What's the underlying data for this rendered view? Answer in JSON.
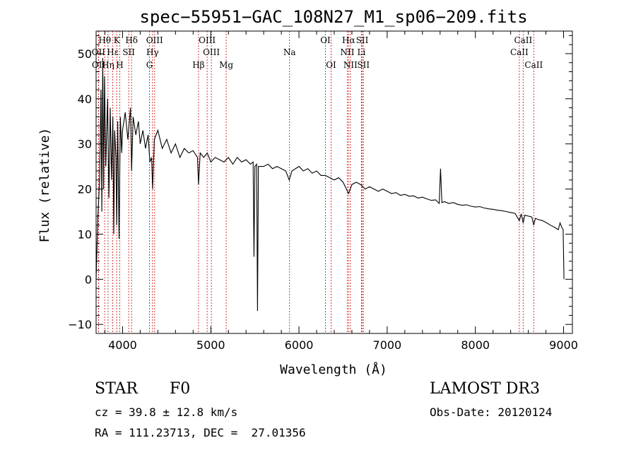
{
  "chart_data": {
    "type": "line",
    "title": "spec−55951−GAC_108N27_M1_sp06−209.fits",
    "xlabel": "Wavelength (Å)",
    "ylabel": "Flux (relative)",
    "xlim": [
      3700,
      9100
    ],
    "ylim": [
      -12,
      55
    ],
    "xticks": [
      4000,
      5000,
      6000,
      7000,
      8000,
      9000
    ],
    "yticks": [
      -10,
      0,
      10,
      20,
      30,
      40,
      50
    ],
    "tick_labels_x": [
      "4000",
      "5000",
      "6000",
      "7000",
      "8000",
      "9000"
    ],
    "tick_labels_y": [
      "−10",
      "0",
      "10",
      "20",
      "30",
      "40",
      "50"
    ],
    "series": [
      {
        "name": "spectrum",
        "points": [
          [
            3700,
            0
          ],
          [
            3720,
            14
          ],
          [
            3740,
            22
          ],
          [
            3755,
            42
          ],
          [
            3765,
            15
          ],
          [
            3775,
            49
          ],
          [
            3785,
            20
          ],
          [
            3795,
            45
          ],
          [
            3810,
            25
          ],
          [
            3830,
            40
          ],
          [
            3845,
            18
          ],
          [
            3860,
            38
          ],
          [
            3875,
            22
          ],
          [
            3890,
            36
          ],
          [
            3900,
            10
          ],
          [
            3910,
            33
          ],
          [
            3925,
            27
          ],
          [
            3933,
            12
          ],
          [
            3945,
            35
          ],
          [
            3960,
            9
          ],
          [
            3975,
            36
          ],
          [
            3990,
            28
          ],
          [
            4000,
            33
          ],
          [
            4030,
            37
          ],
          [
            4060,
            31
          ],
          [
            4090,
            38
          ],
          [
            4102,
            24
          ],
          [
            4120,
            36
          ],
          [
            4150,
            32
          ],
          [
            4180,
            35
          ],
          [
            4200,
            30
          ],
          [
            4230,
            33
          ],
          [
            4260,
            29
          ],
          [
            4290,
            32
          ],
          [
            4310,
            26
          ],
          [
            4330,
            27
          ],
          [
            4340,
            20
          ],
          [
            4360,
            31
          ],
          [
            4400,
            33
          ],
          [
            4450,
            29
          ],
          [
            4500,
            31
          ],
          [
            4550,
            28
          ],
          [
            4600,
            30
          ],
          [
            4650,
            27
          ],
          [
            4700,
            29
          ],
          [
            4750,
            28
          ],
          [
            4800,
            28.5
          ],
          [
            4850,
            27
          ],
          [
            4861,
            21
          ],
          [
            4880,
            28
          ],
          [
            4920,
            27
          ],
          [
            4960,
            28
          ],
          [
            5000,
            26
          ],
          [
            5050,
            27
          ],
          [
            5100,
            26.5
          ],
          [
            5150,
            26
          ],
          [
            5200,
            27
          ],
          [
            5250,
            25.5
          ],
          [
            5300,
            27
          ],
          [
            5350,
            26
          ],
          [
            5400,
            26.5
          ],
          [
            5450,
            25.5
          ],
          [
            5480,
            26
          ],
          [
            5490,
            5
          ],
          [
            5500,
            25
          ],
          [
            5520,
            25.5
          ],
          [
            5530,
            -7
          ],
          [
            5540,
            25
          ],
          [
            5600,
            25
          ],
          [
            5650,
            25.5
          ],
          [
            5700,
            24.5
          ],
          [
            5750,
            25
          ],
          [
            5800,
            24.5
          ],
          [
            5850,
            24
          ],
          [
            5890,
            22
          ],
          [
            5920,
            24
          ],
          [
            6000,
            25
          ],
          [
            6050,
            24
          ],
          [
            6100,
            24.5
          ],
          [
            6150,
            23.5
          ],
          [
            6200,
            24
          ],
          [
            6250,
            23
          ],
          [
            6300,
            23
          ],
          [
            6350,
            22.5
          ],
          [
            6400,
            22
          ],
          [
            6450,
            22.5
          ],
          [
            6500,
            21.5
          ],
          [
            6563,
            19
          ],
          [
            6600,
            21
          ],
          [
            6650,
            21.5
          ],
          [
            6700,
            21
          ],
          [
            6750,
            20
          ],
          [
            6800,
            20.5
          ],
          [
            6850,
            20
          ],
          [
            6900,
            19.5
          ],
          [
            6950,
            20
          ],
          [
            7000,
            19.5
          ],
          [
            7050,
            19
          ],
          [
            7100,
            19.2
          ],
          [
            7150,
            18.6
          ],
          [
            7200,
            18.8
          ],
          [
            7250,
            18.4
          ],
          [
            7300,
            18.5
          ],
          [
            7350,
            18
          ],
          [
            7400,
            18.2
          ],
          [
            7450,
            17.8
          ],
          [
            7500,
            17.5
          ],
          [
            7550,
            17.6
          ],
          [
            7590,
            16.8
          ],
          [
            7605,
            24.5
          ],
          [
            7620,
            17
          ],
          [
            7650,
            17.2
          ],
          [
            7700,
            16.8
          ],
          [
            7750,
            17
          ],
          [
            7800,
            16.6
          ],
          [
            7850,
            16.4
          ],
          [
            7900,
            16.5
          ],
          [
            7950,
            16.2
          ],
          [
            8000,
            16
          ],
          [
            8050,
            16.1
          ],
          [
            8100,
            15.8
          ],
          [
            8150,
            15.6
          ],
          [
            8200,
            15.5
          ],
          [
            8250,
            15.3
          ],
          [
            8300,
            15.2
          ],
          [
            8350,
            15
          ],
          [
            8400,
            14.8
          ],
          [
            8450,
            14.6
          ],
          [
            8498,
            13
          ],
          [
            8520,
            14.5
          ],
          [
            8542,
            12.5
          ],
          [
            8560,
            14.2
          ],
          [
            8600,
            14
          ],
          [
            8640,
            13.8
          ],
          [
            8662,
            12
          ],
          [
            8680,
            13.5
          ],
          [
            8720,
            13.2
          ],
          [
            8760,
            13
          ],
          [
            8800,
            12.6
          ],
          [
            8850,
            12
          ],
          [
            8900,
            11.5
          ],
          [
            8940,
            11
          ],
          [
            8960,
            12.5
          ],
          [
            8980,
            11.5
          ],
          [
            8995,
            11
          ],
          [
            9005,
            0
          ]
        ]
      }
    ],
    "lines": [
      {
        "label": "Hθ",
        "wavelength": 3798,
        "row": 1
      },
      {
        "label": "K",
        "wavelength": 3934,
        "row": 1
      },
      {
        "label": "Hδ",
        "wavelength": 4102,
        "row": 1
      },
      {
        "label": "OIII",
        "wavelength": 4363,
        "row": 1
      },
      {
        "label": "OIII",
        "wavelength": 4959,
        "row": 1
      },
      {
        "label": "OI",
        "wavelength": 6300,
        "row": 1
      },
      {
        "label": "Hα",
        "wavelength": 6563,
        "row": 1
      },
      {
        "label": "SII",
        "wavelength": 6717,
        "row": 1
      },
      {
        "label": "CaII",
        "wavelength": 8542,
        "row": 1
      },
      {
        "label": "OII",
        "wavelength": 3727,
        "row": 2
      },
      {
        "label": "Hε",
        "wavelength": 3889,
        "row": 2
      },
      {
        "label": "SII",
        "wavelength": 4070,
        "row": 2
      },
      {
        "label": "Hγ",
        "wavelength": 4340,
        "row": 2
      },
      {
        "label": "OIII",
        "wavelength": 5007,
        "row": 2
      },
      {
        "label": "Na",
        "wavelength": 5893,
        "row": 2
      },
      {
        "label": "NII",
        "wavelength": 6548,
        "row": 2
      },
      {
        "label": "Li",
        "wavelength": 6708,
        "row": 2
      },
      {
        "label": "CaII",
        "wavelength": 8498,
        "row": 2
      },
      {
        "label": "OII",
        "wavelength": 3729,
        "row": 3
      },
      {
        "label": "Hη",
        "wavelength": 3835,
        "row": 3
      },
      {
        "label": "H",
        "wavelength": 3968,
        "row": 3
      },
      {
        "label": "G",
        "wavelength": 4305,
        "row": 3
      },
      {
        "label": "Hβ",
        "wavelength": 4861,
        "row": 3
      },
      {
        "label": "Mg",
        "wavelength": 5175,
        "row": 3
      },
      {
        "label": "OI",
        "wavelength": 6364,
        "row": 3
      },
      {
        "label": "NII",
        "wavelength": 6583,
        "row": 3
      },
      {
        "label": "SII",
        "wavelength": 6731,
        "row": 3
      },
      {
        "label": "CaII",
        "wavelength": 8662,
        "row": 3
      }
    ]
  },
  "info": {
    "object_class": "STAR",
    "subclass": "F0",
    "survey": "LAMOST DR3",
    "redshift": "cz = 39.8 ± 12.8 km/s",
    "obs_date": "Obs-Date: 20120124",
    "coords": "RA = 111.23713, DEC =  27.01356"
  }
}
